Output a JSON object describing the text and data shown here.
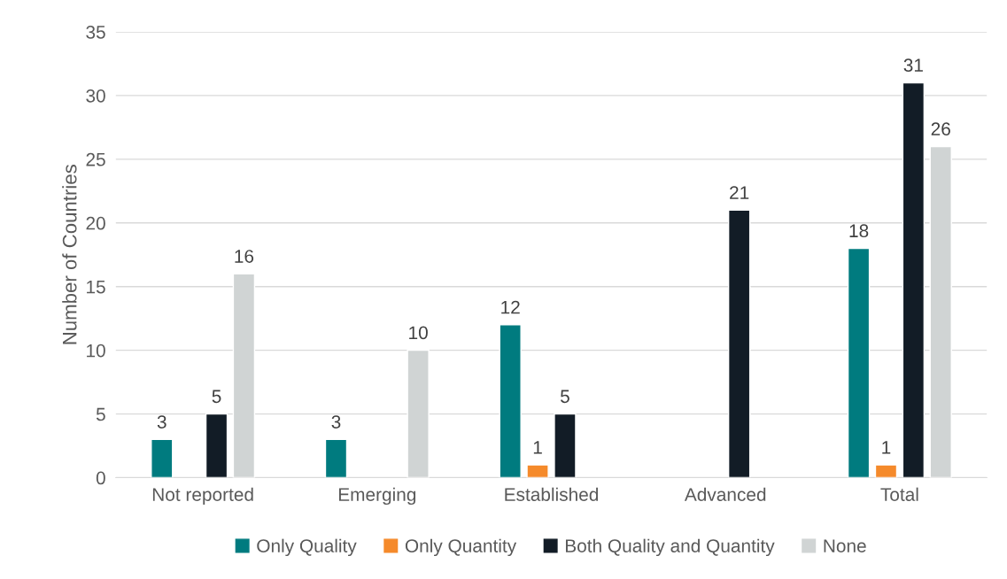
{
  "chart_data": {
    "type": "bar",
    "ylabel": "Number of Countries",
    "categories": [
      "Not reported",
      "Emerging",
      "Established",
      "Advanced",
      "Total"
    ],
    "series": [
      {
        "name": "Only Quality",
        "color": "#007b7f",
        "values": [
          3,
          3,
          12,
          null,
          18
        ]
      },
      {
        "name": "Only Quantity",
        "color": "#f58a2b",
        "values": [
          null,
          null,
          1,
          null,
          1
        ]
      },
      {
        "name": "Both Quality and Quantity",
        "color": "#121c26",
        "values": [
          5,
          null,
          5,
          21,
          31
        ]
      },
      {
        "name": "None",
        "color": "#d0d4d4",
        "values": [
          16,
          10,
          null,
          null,
          26
        ]
      }
    ],
    "ylim": [
      0,
      35
    ],
    "yticks": [
      0,
      5,
      10,
      15,
      20,
      25,
      30,
      35
    ],
    "grid": "y",
    "legend": "bottom",
    "data_labels": true
  }
}
